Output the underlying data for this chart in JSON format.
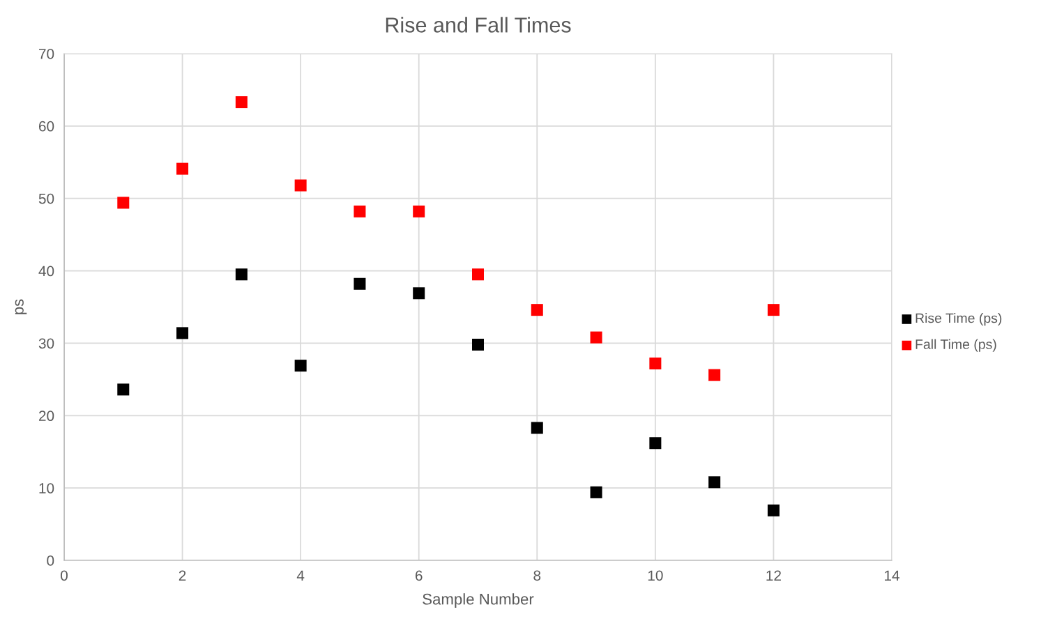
{
  "chart_data": {
    "type": "scatter",
    "title": "Rise and Fall Times",
    "xlabel": "Sample Number",
    "ylabel": "ps",
    "x": [
      1,
      2,
      3,
      4,
      5,
      6,
      7,
      8,
      9,
      10,
      11,
      12
    ],
    "series": [
      {
        "name": "Rise Time (ps)",
        "color": "#000000",
        "values": [
          23.6,
          31.4,
          39.5,
          26.9,
          38.2,
          36.9,
          29.8,
          18.3,
          9.4,
          16.2,
          10.8,
          6.9
        ]
      },
      {
        "name": "Fall Time (ps)",
        "color": "#ff0000",
        "values": [
          49.4,
          54.1,
          63.3,
          51.8,
          48.2,
          48.2,
          39.5,
          34.6,
          30.8,
          27.2,
          25.6,
          34.6
        ]
      }
    ],
    "xlim": [
      0,
      14
    ],
    "xticks": [
      0,
      2,
      4,
      6,
      8,
      10,
      12,
      14
    ],
    "ylim": [
      0,
      70
    ],
    "yticks": [
      0,
      10,
      20,
      30,
      40,
      50,
      60,
      70
    ],
    "grid": true,
    "legend": "right",
    "marker": "square"
  }
}
